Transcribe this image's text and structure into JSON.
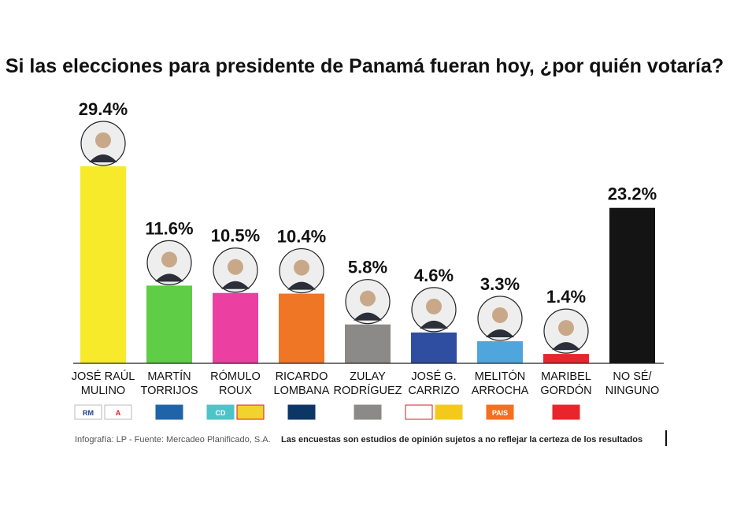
{
  "chart_data": {
    "type": "bar",
    "title": "Si las elecciones para presidente de Panamá fueran hoy, ¿por quién votaría?",
    "unit": "%",
    "ylim": [
      0,
      30
    ],
    "categories": [
      [
        "JOSÉ RAÚL",
        "MULINO"
      ],
      [
        "MARTÍN",
        "TORRIJOS"
      ],
      [
        "RÓMULO",
        "ROUX"
      ],
      [
        "RICARDO",
        "LOMBANA"
      ],
      [
        "ZULAY",
        "RODRÍGUEZ"
      ],
      [
        "JOSÉ G.",
        "CARRIZO"
      ],
      [
        "MELITÓN",
        "ARROCHA"
      ],
      [
        "MARIBEL",
        "GORDÓN"
      ],
      [
        "NO SÉ/",
        "NINGUNO"
      ]
    ],
    "values": [
      29.4,
      11.6,
      10.5,
      10.4,
      5.8,
      4.6,
      3.3,
      1.4,
      23.2
    ],
    "value_labels": [
      "29.4%",
      "11.6%",
      "10.5%",
      "10.4%",
      "5.8%",
      "4.6%",
      "3.3%",
      "1.4%",
      "23.2%"
    ],
    "colors": [
      "#f7ea2b",
      "#5fcd45",
      "#ec3fa2",
      "#ef7625",
      "#8c8989",
      "#2f4da1",
      "#4fa6dd",
      "#e8252a",
      "#141414"
    ],
    "has_photo": [
      true,
      true,
      true,
      true,
      true,
      true,
      true,
      true,
      false
    ],
    "party_logos": [
      [
        {
          "bg": "#ffffff",
          "fg": "#1d3f91",
          "text": "RM",
          "border": "#bbbbbb"
        },
        {
          "bg": "#ffffff",
          "fg": "#e41e26",
          "text": "A",
          "border": "#bbbbbb"
        }
      ],
      [
        {
          "bg": "#1f64a8",
          "fg": "#ffffff",
          "text": "",
          "border": "#1f64a8"
        }
      ],
      [
        {
          "bg": "#4ec3c8",
          "fg": "#ffffff",
          "text": "CD",
          "border": "#4ec3c8"
        },
        {
          "bg": "#f2d22c",
          "fg": "#d6202a",
          "text": "",
          "border": "#d6202a"
        }
      ],
      [
        {
          "bg": "#0c3666",
          "fg": "#f28a1e",
          "text": "",
          "border": "#0c3666"
        }
      ],
      [
        {
          "bg": "#8c8989",
          "fg": "#ffffff",
          "text": "",
          "border": "#8c8989"
        }
      ],
      [
        {
          "bg": "#ffffff",
          "fg": "#1b3b8c",
          "text": "",
          "border": "#cc2027"
        },
        {
          "bg": "#f3c91c",
          "fg": "#cc2027",
          "text": "",
          "border": "#f3c91c"
        }
      ],
      [
        {
          "bg": "#f37021",
          "fg": "#ffffff",
          "text": "PAIS",
          "border": "#f37021"
        }
      ],
      [
        {
          "bg": "#e8252a",
          "fg": "#ffffff",
          "text": "",
          "border": "#e8252a"
        }
      ],
      []
    ]
  },
  "footer": {
    "source": "Infografía: LP - Fuente: Mercadeo Planificado, S.A.",
    "disclaimer": "Las encuestas son estudios de opinión sujetos a no reflejar la certeza de los resultados"
  }
}
